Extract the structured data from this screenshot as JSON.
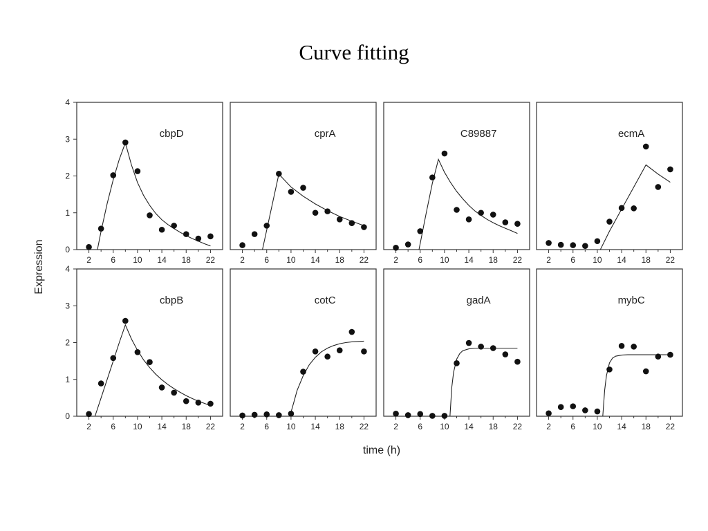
{
  "title": "Curve fitting",
  "ylabel": "Expression",
  "xlabel": "time (h)",
  "chart_data": [
    {
      "type": "scatter",
      "title": "cbpD",
      "x": [
        2,
        4,
        6,
        8,
        10,
        12,
        14,
        16,
        18,
        20,
        22
      ],
      "y": [
        0.07,
        0.57,
        2.02,
        2.91,
        2.13,
        0.93,
        0.54,
        0.65,
        0.42,
        0.3,
        0.36
      ],
      "fit": {
        "x": [
          3.4,
          4,
          5,
          6,
          7,
          8,
          9,
          10,
          11,
          12,
          13,
          14,
          15,
          16,
          17,
          18,
          19,
          20,
          21,
          22
        ],
        "y": [
          0.0,
          0.5,
          1.25,
          1.9,
          2.45,
          2.9,
          2.3,
          1.82,
          1.47,
          1.2,
          0.98,
          0.81,
          0.68,
          0.57,
          0.47,
          0.38,
          0.3,
          0.23,
          0.16,
          0.1
        ]
      },
      "xlim": [
        0,
        24
      ],
      "ylim": [
        0,
        4
      ]
    },
    {
      "type": "scatter",
      "title": "cprA",
      "x": [
        2,
        4,
        6,
        8,
        10,
        12,
        14,
        16,
        18,
        20,
        22
      ],
      "y": [
        0.12,
        0.42,
        0.65,
        2.06,
        1.57,
        1.68,
        1.0,
        1.04,
        0.82,
        0.72,
        0.61
      ],
      "fit": {
        "x": [
          5.3,
          8,
          10,
          12,
          14,
          16,
          18,
          20,
          22
        ],
        "y": [
          0.0,
          2.05,
          1.7,
          1.45,
          1.24,
          1.06,
          0.9,
          0.77,
          0.65
        ]
      },
      "xlim": [
        0,
        24
      ],
      "ylim": [
        0,
        4
      ]
    },
    {
      "type": "scatter",
      "title": "C89887",
      "x": [
        2,
        4,
        6,
        8,
        10,
        12,
        14,
        16,
        18,
        20,
        22
      ],
      "y": [
        0.05,
        0.14,
        0.5,
        1.96,
        2.61,
        1.08,
        0.82,
        1.0,
        0.95,
        0.74,
        0.7
      ],
      "fit": {
        "x": [
          5.8,
          7,
          8,
          9,
          10,
          11,
          12,
          13,
          14,
          15,
          16,
          17,
          18,
          19,
          20,
          21,
          22
        ],
        "y": [
          0.0,
          1.0,
          1.8,
          2.45,
          2.1,
          1.82,
          1.58,
          1.38,
          1.2,
          1.05,
          0.93,
          0.82,
          0.73,
          0.65,
          0.58,
          0.51,
          0.44
        ]
      },
      "xlim": [
        0,
        24
      ],
      "ylim": [
        0,
        4
      ]
    },
    {
      "type": "scatter",
      "title": "ecmA",
      "x": [
        2,
        4,
        6,
        8,
        10,
        12,
        14,
        16,
        18,
        20,
        22
      ],
      "y": [
        0.18,
        0.13,
        0.12,
        0.1,
        0.23,
        0.76,
        1.13,
        1.12,
        2.8,
        1.7,
        2.18
      ],
      "fit": {
        "x": [
          10.5,
          12,
          14,
          16,
          18,
          20,
          22
        ],
        "y": [
          0.0,
          0.5,
          1.1,
          1.7,
          2.3,
          2.05,
          1.83
        ]
      },
      "xlim": [
        0,
        24
      ],
      "ylim": [
        0,
        4
      ]
    },
    {
      "type": "scatter",
      "title": "cbpB",
      "x": [
        2,
        4,
        6,
        8,
        10,
        12,
        14,
        16,
        18,
        20,
        22
      ],
      "y": [
        0.06,
        0.89,
        1.58,
        2.59,
        1.74,
        1.47,
        0.78,
        0.64,
        0.41,
        0.37,
        0.34
      ],
      "fit": {
        "x": [
          3,
          4,
          5,
          6,
          7,
          8,
          9,
          10,
          11,
          12,
          13,
          14,
          15,
          16,
          17,
          18,
          19,
          20,
          21,
          22
        ],
        "y": [
          0.0,
          0.5,
          1.0,
          1.5,
          2.0,
          2.48,
          2.1,
          1.79,
          1.53,
          1.32,
          1.14,
          0.99,
          0.86,
          0.75,
          0.65,
          0.56,
          0.48,
          0.41,
          0.35,
          0.29
        ]
      },
      "xlim": [
        0,
        24
      ],
      "ylim": [
        0,
        4
      ]
    },
    {
      "type": "scatter",
      "title": "cotC",
      "x": [
        2,
        4,
        6,
        8,
        10,
        12,
        14,
        16,
        18,
        20,
        22
      ],
      "y": [
        0.02,
        0.04,
        0.05,
        0.03,
        0.07,
        1.21,
        1.76,
        1.62,
        1.79,
        2.29,
        1.76
      ],
      "fit": {
        "x": [
          9.8,
          10.5,
          11,
          12,
          13,
          14,
          15,
          16,
          17,
          18,
          19,
          20,
          21,
          22
        ],
        "y": [
          0.0,
          0.4,
          0.7,
          1.1,
          1.4,
          1.6,
          1.75,
          1.85,
          1.92,
          1.97,
          2.0,
          2.02,
          2.03,
          2.04
        ]
      },
      "xlim": [
        0,
        24
      ],
      "ylim": [
        0,
        4
      ]
    },
    {
      "type": "scatter",
      "title": "gadA",
      "x": [
        2,
        4,
        6,
        8,
        10,
        12,
        14,
        16,
        18,
        20,
        22
      ],
      "y": [
        0.07,
        0.03,
        0.06,
        0.01,
        0.01,
        1.44,
        1.99,
        1.89,
        1.85,
        1.68,
        1.48
      ],
      "fit": {
        "x": [
          10.9,
          11.2,
          11.5,
          12,
          12.5,
          13,
          14,
          15,
          16,
          18,
          20,
          22
        ],
        "y": [
          0.0,
          0.8,
          1.2,
          1.55,
          1.7,
          1.78,
          1.83,
          1.85,
          1.85,
          1.85,
          1.85,
          1.85
        ]
      },
      "xlim": [
        0,
        24
      ],
      "ylim": [
        0,
        4
      ]
    },
    {
      "type": "scatter",
      "title": "mybC",
      "x": [
        2,
        4,
        6,
        8,
        10,
        12,
        14,
        16,
        18,
        20,
        22
      ],
      "y": [
        0.08,
        0.25,
        0.27,
        0.16,
        0.13,
        1.27,
        1.91,
        1.89,
        1.22,
        1.62,
        1.67
      ],
      "fit": {
        "x": [
          10.9,
          11.2,
          11.5,
          12,
          12.5,
          13,
          14,
          15,
          16,
          18,
          20,
          22
        ],
        "y": [
          0.0,
          0.7,
          1.1,
          1.45,
          1.58,
          1.63,
          1.66,
          1.67,
          1.67,
          1.67,
          1.67,
          1.67
        ]
      },
      "xlim": [
        0,
        24
      ],
      "ylim": [
        0,
        4
      ]
    }
  ],
  "axes": {
    "y_ticks": [
      0,
      1,
      2,
      3,
      4
    ],
    "x_ticks": [
      2,
      6,
      10,
      14,
      18,
      22
    ],
    "x_minor_ticks": [
      4,
      8,
      12,
      16,
      20
    ]
  },
  "colors": {
    "marker": "#111111",
    "line": "#222222",
    "frame": "#333333"
  }
}
